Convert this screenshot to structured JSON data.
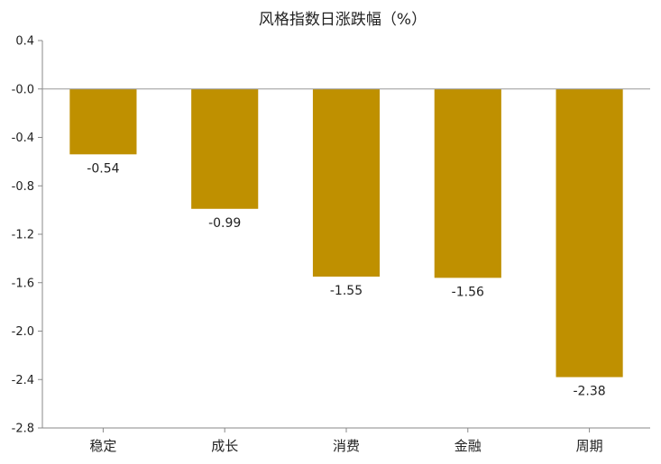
{
  "chart_data": {
    "type": "bar",
    "title": "风格指数日涨跌幅（%）",
    "xlabel": "",
    "ylabel": "",
    "categories": [
      "稳定",
      "成长",
      "消费",
      "金融",
      "周期"
    ],
    "values": [
      -0.54,
      -0.99,
      -1.55,
      -1.56,
      -2.38
    ],
    "data_labels": [
      "-0.54",
      "-0.99",
      "-1.55",
      "-1.56",
      "-2.38"
    ],
    "ylim": [
      -2.8,
      0.4
    ],
    "yticks": [
      0.4,
      -0.0,
      -0.4,
      -0.8,
      -1.2,
      -1.6,
      -2.0,
      -2.4,
      -2.8
    ],
    "ytick_labels": [
      "0.4",
      "-0.0",
      "-0.4",
      "-0.8",
      "-1.2",
      "-1.6",
      "-2.0",
      "-2.4",
      "-2.8"
    ],
    "bar_color": "#BF9000",
    "grid": false,
    "legend": "none"
  }
}
